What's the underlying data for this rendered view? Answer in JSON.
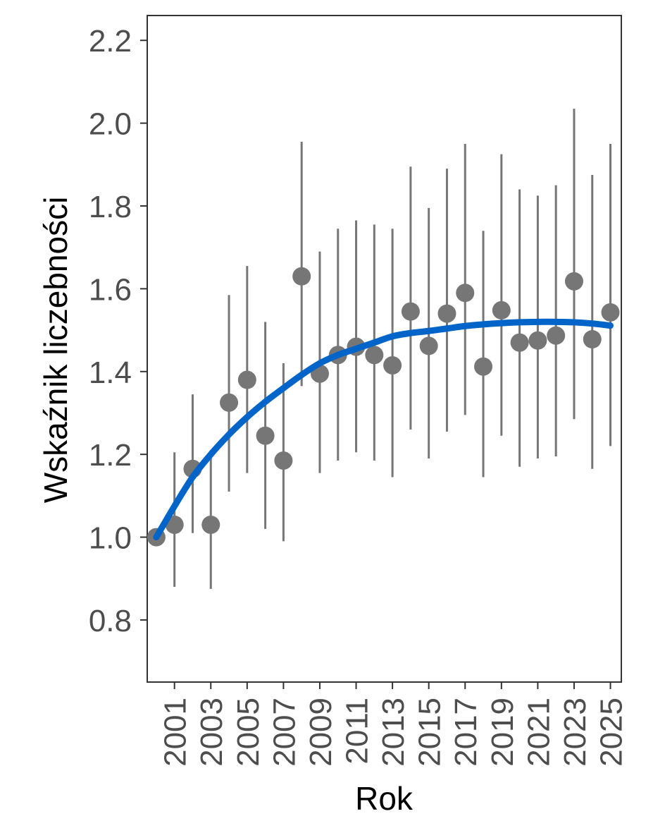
{
  "chart_data": {
    "type": "scatter",
    "title": "",
    "xlabel": "Rok",
    "ylabel": "Wskaźnik liczebności",
    "xlim": [
      1999.5,
      2025.6
    ],
    "ylim": [
      0.65,
      2.26
    ],
    "x_ticks": [
      2001,
      2003,
      2005,
      2007,
      2009,
      2011,
      2013,
      2015,
      2017,
      2019,
      2021,
      2023,
      2025
    ],
    "x_tick_labels": [
      "2001",
      "2003",
      "2005",
      "2007",
      "2009",
      "2011",
      "2013",
      "2015",
      "2017",
      "2019",
      "2021",
      "2023",
      "2025"
    ],
    "y_ticks": [
      0.8,
      1.0,
      1.2,
      1.4,
      1.6,
      1.8,
      2.0,
      2.2
    ],
    "y_tick_labels": [
      "0.8",
      "1.0",
      "1.2",
      "1.4",
      "1.6",
      "1.8",
      "2.0",
      "2.2"
    ],
    "grid": false,
    "colors": {
      "points": "#767676",
      "error_bars": "#767676",
      "trend": "#0064c8",
      "axis": "#333333"
    },
    "series": [
      {
        "kind": "points_with_error_bars",
        "x": [
          2000,
          2001,
          2002,
          2003,
          2004,
          2005,
          2006,
          2007,
          2008,
          2009,
          2010,
          2011,
          2012,
          2013,
          2014,
          2015,
          2016,
          2017,
          2018,
          2019,
          2020,
          2021,
          2022,
          2023,
          2024,
          2025
        ],
        "y": [
          1.0,
          1.03,
          1.165,
          1.03,
          1.325,
          1.38,
          1.245,
          1.185,
          1.63,
          1.395,
          1.44,
          1.46,
          1.44,
          1.415,
          1.545,
          1.462,
          1.54,
          1.59,
          1.412,
          1.548,
          1.47,
          1.475,
          1.487,
          1.618,
          1.478,
          1.543
        ],
        "lower": [
          null,
          0.88,
          1.01,
          0.875,
          1.11,
          1.155,
          1.02,
          0.99,
          1.365,
          1.155,
          1.185,
          1.205,
          1.185,
          1.145,
          1.26,
          1.19,
          1.255,
          1.295,
          1.145,
          1.245,
          1.17,
          1.19,
          1.195,
          1.285,
          1.165,
          1.22
        ],
        "upper": [
          null,
          1.205,
          1.345,
          1.21,
          1.585,
          1.655,
          1.52,
          1.42,
          1.955,
          1.69,
          1.745,
          1.765,
          1.755,
          1.745,
          1.895,
          1.795,
          1.89,
          1.95,
          1.74,
          1.925,
          1.84,
          1.825,
          1.85,
          2.035,
          1.875,
          1.95
        ]
      },
      {
        "kind": "trend_line",
        "x": [
          2000,
          2001,
          2002,
          2003,
          2004,
          2005,
          2006,
          2007,
          2008,
          2009,
          2010,
          2011,
          2012,
          2013,
          2014,
          2015,
          2016,
          2017,
          2018,
          2019,
          2020,
          2021,
          2022,
          2023,
          2024,
          2025
        ],
        "y": [
          1.0,
          1.075,
          1.145,
          1.2,
          1.248,
          1.29,
          1.327,
          1.36,
          1.392,
          1.42,
          1.44,
          1.455,
          1.47,
          1.485,
          1.493,
          1.498,
          1.504,
          1.51,
          1.514,
          1.517,
          1.519,
          1.52,
          1.52,
          1.519,
          1.516,
          1.511
        ]
      }
    ]
  }
}
